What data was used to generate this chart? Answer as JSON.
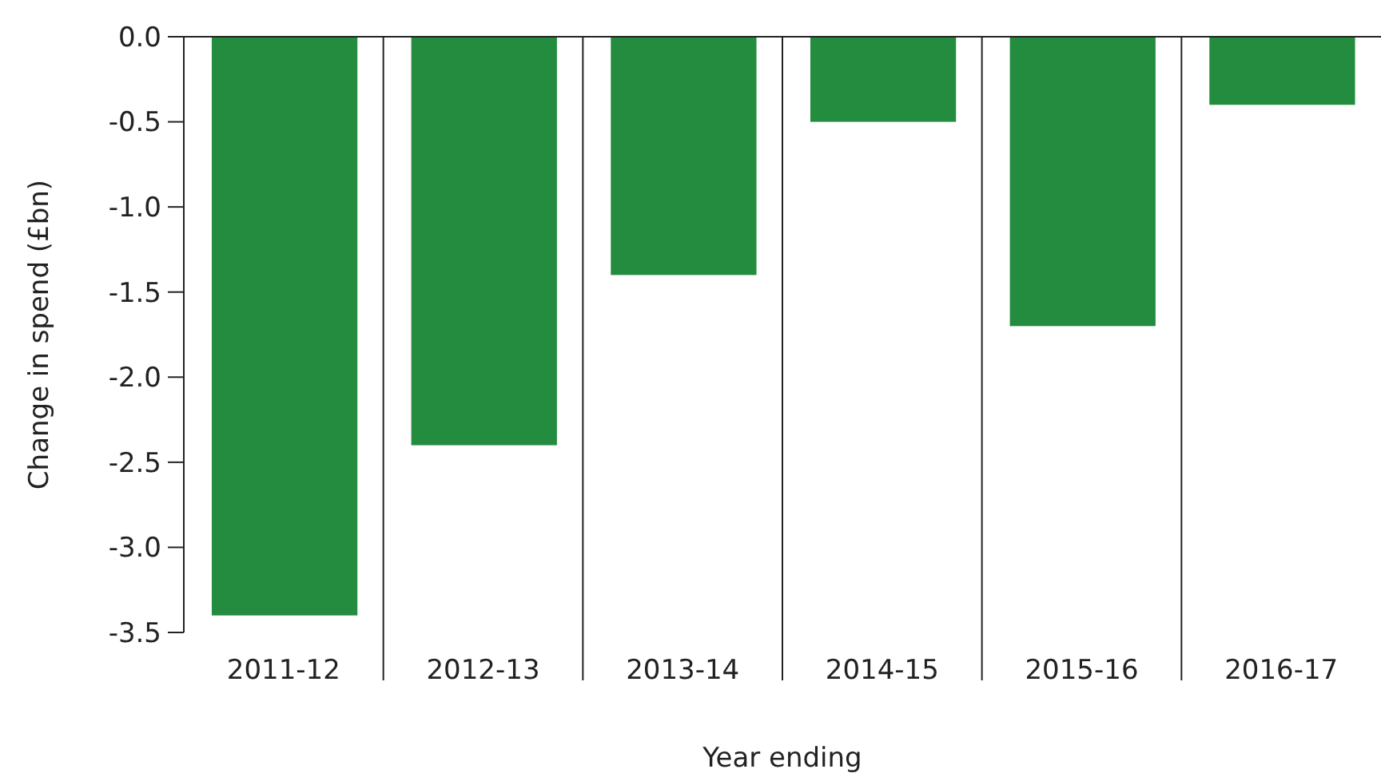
{
  "chart_data": {
    "type": "bar",
    "xlabel": "Year ending",
    "ylabel": "Change in spend (£bn)",
    "categories": [
      "2011-12",
      "2012-13",
      "2013-14",
      "2014-15",
      "2015-16",
      "2016-17"
    ],
    "values": [
      -3.4,
      -2.4,
      -1.4,
      -0.5,
      -1.7,
      -0.4
    ],
    "color": "#238c3f",
    "ylim": [
      -3.5,
      0
    ],
    "yticks": [
      {
        "value": 0,
        "label": "0.0"
      },
      {
        "value": -0.5,
        "label": "-0.5"
      },
      {
        "value": -1,
        "label": "-1.0"
      },
      {
        "value": -1.5,
        "label": "-1.5"
      },
      {
        "value": -2,
        "label": "-2.0"
      },
      {
        "value": -2.5,
        "label": "-2.5"
      },
      {
        "value": -3,
        "label": "-3.0"
      },
      {
        "value": -3.5,
        "label": "-3.5"
      }
    ],
    "grid": "x"
  }
}
